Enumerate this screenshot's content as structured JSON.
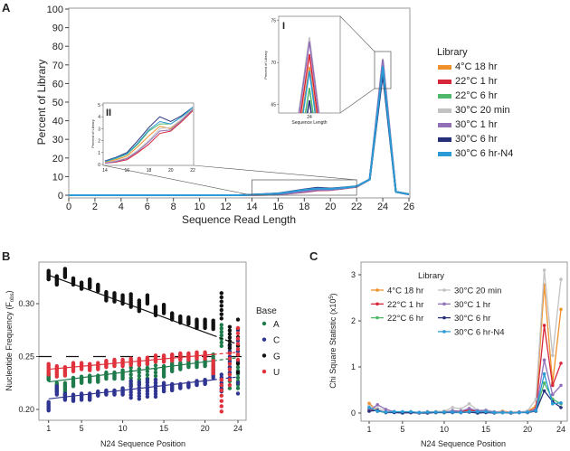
{
  "chart_data": [
    {
      "panel": "A",
      "type": "line",
      "xlabel": "Sequence Read Length",
      "ylabel": "Percent of Library",
      "xlim": [
        0,
        26
      ],
      "ylim": [
        0,
        100
      ],
      "xticks": [
        0,
        2,
        4,
        6,
        8,
        10,
        12,
        14,
        16,
        18,
        20,
        22,
        24,
        26
      ],
      "yticks": [
        0,
        10,
        20,
        30,
        40,
        50,
        60,
        70,
        80,
        90,
        100
      ],
      "legend_title": "Library",
      "legend_position": "right",
      "x": [
        0,
        1,
        2,
        3,
        4,
        5,
        6,
        7,
        8,
        9,
        10,
        11,
        12,
        13,
        14,
        15,
        16,
        17,
        18,
        19,
        20,
        21,
        22,
        23,
        24,
        25,
        26
      ],
      "series": [
        {
          "name": "4°C 18 hr",
          "color": "#f0902a",
          "values": [
            0,
            0,
            0,
            0,
            0,
            0,
            0,
            0,
            0,
            0,
            0,
            0,
            0,
            0,
            0.2,
            0.4,
            0.7,
            1.5,
            2.4,
            3.2,
            3.0,
            3.8,
            4.6,
            8.5,
            69.5,
            1.8,
            0.5
          ]
        },
        {
          "name": "22°C 1 hr",
          "color": "#d7263a",
          "values": [
            0,
            0,
            0,
            0,
            0,
            0,
            0,
            0,
            0,
            0,
            0,
            0,
            0,
            0,
            0.1,
            0.2,
            0.4,
            1.0,
            1.7,
            2.6,
            2.8,
            3.6,
            4.5,
            8.5,
            71,
            1.8,
            0.5
          ]
        },
        {
          "name": "22°C 6 hr",
          "color": "#4fb86a",
          "values": [
            0,
            0,
            0,
            0,
            0,
            0,
            0,
            0,
            0,
            0,
            0,
            0,
            0,
            0,
            0.25,
            0.5,
            0.85,
            1.7,
            2.8,
            3.4,
            3.4,
            4.0,
            4.7,
            8.5,
            67,
            1.8,
            0.5
          ]
        },
        {
          "name": "30°C 20 min",
          "color": "#c2c2c2",
          "values": [
            0,
            0,
            0,
            0,
            0,
            0,
            0,
            0,
            0,
            0,
            0,
            0,
            0,
            0,
            0.12,
            0.3,
            0.55,
            1.2,
            2.0,
            3.0,
            3.1,
            3.8,
            4.7,
            8.5,
            73,
            1.8,
            0.5
          ]
        },
        {
          "name": "30°C 1 hr",
          "color": "#9170b8",
          "values": [
            0,
            0,
            0,
            0,
            0,
            0,
            0,
            0,
            0,
            0,
            0,
            0,
            0,
            0,
            0.1,
            0.25,
            0.5,
            1.1,
            1.9,
            2.8,
            2.9,
            3.7,
            4.6,
            8.5,
            72.5,
            1.8,
            0.5
          ]
        },
        {
          "name": "30°C 6 hr",
          "color": "#26307a",
          "values": [
            0,
            0,
            0,
            0,
            0,
            0,
            0,
            0,
            0,
            0,
            0,
            0,
            0,
            0,
            0.3,
            0.6,
            1.0,
            2.0,
            3.1,
            4.0,
            3.6,
            4.1,
            4.8,
            8.5,
            65.5,
            1.8,
            0.5
          ]
        },
        {
          "name": "30°C 6 hr-N4",
          "color": "#2a9bd6",
          "values": [
            0,
            0,
            0,
            0,
            0,
            0,
            0,
            0,
            0,
            0,
            0,
            0,
            0,
            0,
            0.25,
            0.55,
            0.9,
            1.8,
            2.9,
            3.6,
            3.4,
            4.0,
            4.8,
            8.5,
            69,
            1.8,
            0.5
          ]
        }
      ],
      "insets": [
        {
          "label": "I",
          "xlabel": "Sequence Length",
          "ylabel": "Percent of Library",
          "xticks": [
            24
          ],
          "yticks": [
            65,
            70,
            75
          ],
          "ylim": [
            64,
            75.5
          ]
        },
        {
          "label": "II",
          "ylabel": "Percent of Library",
          "xlim": [
            14,
            22
          ],
          "ylim": [
            0,
            5
          ],
          "xticks": [
            14,
            16,
            18,
            20,
            22
          ],
          "yticks": [
            0,
            1,
            2,
            3,
            4,
            5
          ]
        }
      ]
    },
    {
      "panel": "B",
      "type": "scatter",
      "xlabel": "N24 Sequence Position",
      "ylabel": "Nucleotide Frequency (F",
      "ylabel_sub": "obs",
      "ylabel_end": ")",
      "xlim": [
        1,
        24
      ],
      "ylim": [
        0.19,
        0.34
      ],
      "xticks": [
        1,
        5,
        10,
        15,
        20,
        24
      ],
      "yticks": [
        "0.20",
        "0.25",
        "0.30"
      ],
      "reference_line": 0.25,
      "legend_title": "Base",
      "legend_position": "right",
      "x": [
        1,
        2,
        3,
        4,
        5,
        6,
        7,
        8,
        9,
        10,
        11,
        12,
        13,
        14,
        15,
        16,
        17,
        18,
        19,
        20,
        21,
        22,
        23,
        24
      ],
      "series": [
        {
          "name": "A",
          "color": "#1e7a4a",
          "mean": [
            0.231,
            0.221,
            0.22,
            0.226,
            0.228,
            0.229,
            0.229,
            0.232,
            0.232,
            0.233,
            0.233,
            0.235,
            0.236,
            0.235,
            0.236,
            0.24,
            0.241,
            0.243,
            0.243,
            0.244,
            0.246,
            0.27,
            0.24,
            0.23
          ],
          "spread": [
            0.003,
            0.004,
            0.005,
            0.004,
            0.003,
            0.003,
            0.003,
            0.003,
            0.003,
            0.004,
            0.01,
            0.01,
            0.01,
            0.01,
            0.005,
            0.004,
            0.003,
            0.003,
            0.003,
            0.003,
            0.006,
            0.01,
            0.02,
            0.01
          ],
          "fit": [
            0.226,
            0.246
          ]
        },
        {
          "name": "C",
          "color": "#2f3590",
          "mean": [
            0.203,
            0.218,
            0.212,
            0.211,
            0.212,
            0.212,
            0.215,
            0.216,
            0.216,
            0.217,
            0.219,
            0.218,
            0.22,
            0.22,
            0.221,
            0.221,
            0.222,
            0.223,
            0.225,
            0.226,
            0.235,
            0.225,
            0.245,
            0.245
          ],
          "spread": [
            0.004,
            0.004,
            0.003,
            0.003,
            0.003,
            0.003,
            0.002,
            0.002,
            0.002,
            0.003,
            0.008,
            0.008,
            0.008,
            0.008,
            0.004,
            0.003,
            0.002,
            0.002,
            0.002,
            0.002,
            0.005,
            0.008,
            0.015,
            0.03
          ],
          "fit": [
            0.21,
            0.228
          ]
        },
        {
          "name": "G",
          "color": "#111111",
          "mean": [
            0.327,
            0.322,
            0.329,
            0.321,
            0.317,
            0.319,
            0.315,
            0.307,
            0.306,
            0.304,
            0.303,
            0.298,
            0.304,
            0.293,
            0.295,
            0.288,
            0.285,
            0.284,
            0.281,
            0.281,
            0.28,
            0.298,
            0.268,
            0.26
          ],
          "spread": [
            0.004,
            0.004,
            0.004,
            0.003,
            0.003,
            0.004,
            0.003,
            0.004,
            0.004,
            0.004,
            0.006,
            0.005,
            0.004,
            0.004,
            0.004,
            0.003,
            0.003,
            0.003,
            0.004,
            0.004,
            0.004,
            0.012,
            0.01,
            0.025
          ],
          "fit": [
            0.327,
            0.27
          ]
        },
        {
          "name": "U",
          "color": "#e0323c",
          "mean": [
            0.238,
            0.236,
            0.236,
            0.24,
            0.241,
            0.24,
            0.241,
            0.243,
            0.244,
            0.244,
            0.245,
            0.245,
            0.246,
            0.248,
            0.248,
            0.249,
            0.25,
            0.25,
            0.251,
            0.251,
            0.24,
            0.213,
            0.238,
            0.262
          ],
          "spread": [
            0.005,
            0.005,
            0.004,
            0.004,
            0.003,
            0.003,
            0.003,
            0.003,
            0.003,
            0.003,
            0.003,
            0.003,
            0.003,
            0.003,
            0.003,
            0.003,
            0.003,
            0.003,
            0.003,
            0.003,
            0.006,
            0.015,
            0.015,
            0.015
          ],
          "fit": [
            0.238,
            0.252
          ]
        }
      ]
    },
    {
      "panel": "C",
      "type": "line",
      "xlabel": "N24 Sequence Position",
      "ylabel": "Chi Square Statistic (x10",
      "ylabel_sup": "5",
      "ylabel_end": ")",
      "xlim": [
        1,
        24
      ],
      "ylim": [
        0,
        3.2
      ],
      "xticks": [
        1,
        5,
        10,
        15,
        20,
        24
      ],
      "yticks": [
        0,
        1,
        2,
        3
      ],
      "legend_title": "Library",
      "legend_position": "top-left",
      "x": [
        1,
        2,
        3,
        4,
        5,
        6,
        7,
        8,
        9,
        10,
        11,
        12,
        13,
        14,
        15,
        16,
        17,
        18,
        19,
        20,
        21,
        22,
        23,
        24
      ],
      "series": [
        {
          "name": "4°C 18 hr",
          "color": "#f0902a",
          "values": [
            0.21,
            0.05,
            0.02,
            0.02,
            0.01,
            0.02,
            0.01,
            0.03,
            0.03,
            0.04,
            0.03,
            0.02,
            0.05,
            0.03,
            0.04,
            0.02,
            0.04,
            0.02,
            0.02,
            0.04,
            0.15,
            2.78,
            0.65,
            2.25
          ]
        },
        {
          "name": "22°C 1 hr",
          "color": "#d7263a",
          "values": [
            0.08,
            0.04,
            0.02,
            0.02,
            0.01,
            0.01,
            0.01,
            0.02,
            0.02,
            0.02,
            0.03,
            0.03,
            0.07,
            0.03,
            0.03,
            0.02,
            0.02,
            0.01,
            0.02,
            0.02,
            0.1,
            1.9,
            0.6,
            1.08
          ]
        },
        {
          "name": "22°C 6 hr",
          "color": "#4fb86a",
          "values": [
            0.12,
            0.04,
            0.01,
            0.02,
            0.01,
            0.01,
            0.01,
            0.01,
            0.01,
            0.01,
            0.02,
            0.01,
            0.03,
            0.02,
            0.02,
            0.01,
            0.01,
            0.01,
            0.01,
            0.02,
            0.06,
            0.65,
            0.3,
            0.2
          ]
        },
        {
          "name": "30°C 20 min",
          "color": "#c2c2c2",
          "values": [
            0.15,
            0.1,
            0.05,
            0.03,
            0.02,
            0.02,
            0.02,
            0.03,
            0.03,
            0.04,
            0.12,
            0.09,
            0.2,
            0.06,
            0.07,
            0.03,
            0.03,
            0.02,
            0.02,
            0.05,
            0.3,
            3.1,
            1.25,
            2.9
          ]
        },
        {
          "name": "30°C 1 hr",
          "color": "#9170b8",
          "values": [
            0.05,
            0.18,
            0.08,
            0.03,
            0.01,
            0.01,
            0.01,
            0.02,
            0.02,
            0.02,
            0.05,
            0.04,
            0.1,
            0.05,
            0.05,
            0.02,
            0.02,
            0.01,
            0.02,
            0.02,
            0.08,
            1.15,
            0.4,
            0.6
          ]
        },
        {
          "name": "30°C 6 hr",
          "color": "#26307a",
          "values": [
            0.04,
            0.06,
            0.01,
            0.01,
            0.0,
            0.01,
            0.0,
            0.0,
            0.01,
            0.01,
            0.01,
            0.01,
            0.02,
            0.0,
            0.01,
            0.0,
            0.01,
            0.0,
            0.01,
            0.01,
            0.04,
            0.48,
            0.25,
            0.12
          ]
        },
        {
          "name": "30°C 6 hr-N4",
          "color": "#2a9bd6",
          "values": [
            0.12,
            0.04,
            0.02,
            0.03,
            0.03,
            0.03,
            0.01,
            0.02,
            0.02,
            0.02,
            0.02,
            0.01,
            0.03,
            0.03,
            0.03,
            0.01,
            0.01,
            0.01,
            0.01,
            0.02,
            0.05,
            0.85,
            0.2,
            0.22
          ]
        }
      ]
    }
  ],
  "panel_labels": {
    "a": "A",
    "b": "B",
    "c": "C"
  }
}
